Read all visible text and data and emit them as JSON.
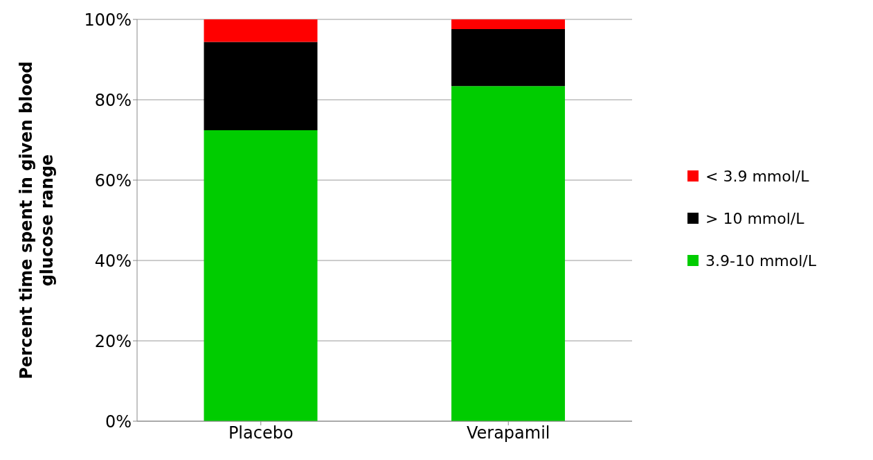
{
  "chart_data": {
    "type": "bar",
    "stacked": true,
    "ylabel": "Percent time spent in given blood glucose range",
    "categories": [
      "Placebo",
      "Verapamil"
    ],
    "series": [
      {
        "name": "3.9-10 mmol/L",
        "color": "#00cc00",
        "values": [
          72.4,
          83.4
        ]
      },
      {
        "name": "> 10 mmol/L",
        "color": "#000000",
        "values": [
          22.0,
          14.2
        ]
      },
      {
        "name": "< 3.9 mmol/L",
        "color": "#ff0000",
        "values": [
          5.6,
          2.4
        ]
      }
    ],
    "ylim": [
      0,
      100
    ],
    "yticks": [
      {
        "value": 0,
        "label": "0%"
      },
      {
        "value": 20,
        "label": "20%"
      },
      {
        "value": 40,
        "label": "40%"
      },
      {
        "value": 60,
        "label": "60%"
      },
      {
        "value": 80,
        "label": "80%"
      },
      {
        "value": 100,
        "label": "100%"
      }
    ],
    "grid": "y",
    "legend": "right"
  }
}
